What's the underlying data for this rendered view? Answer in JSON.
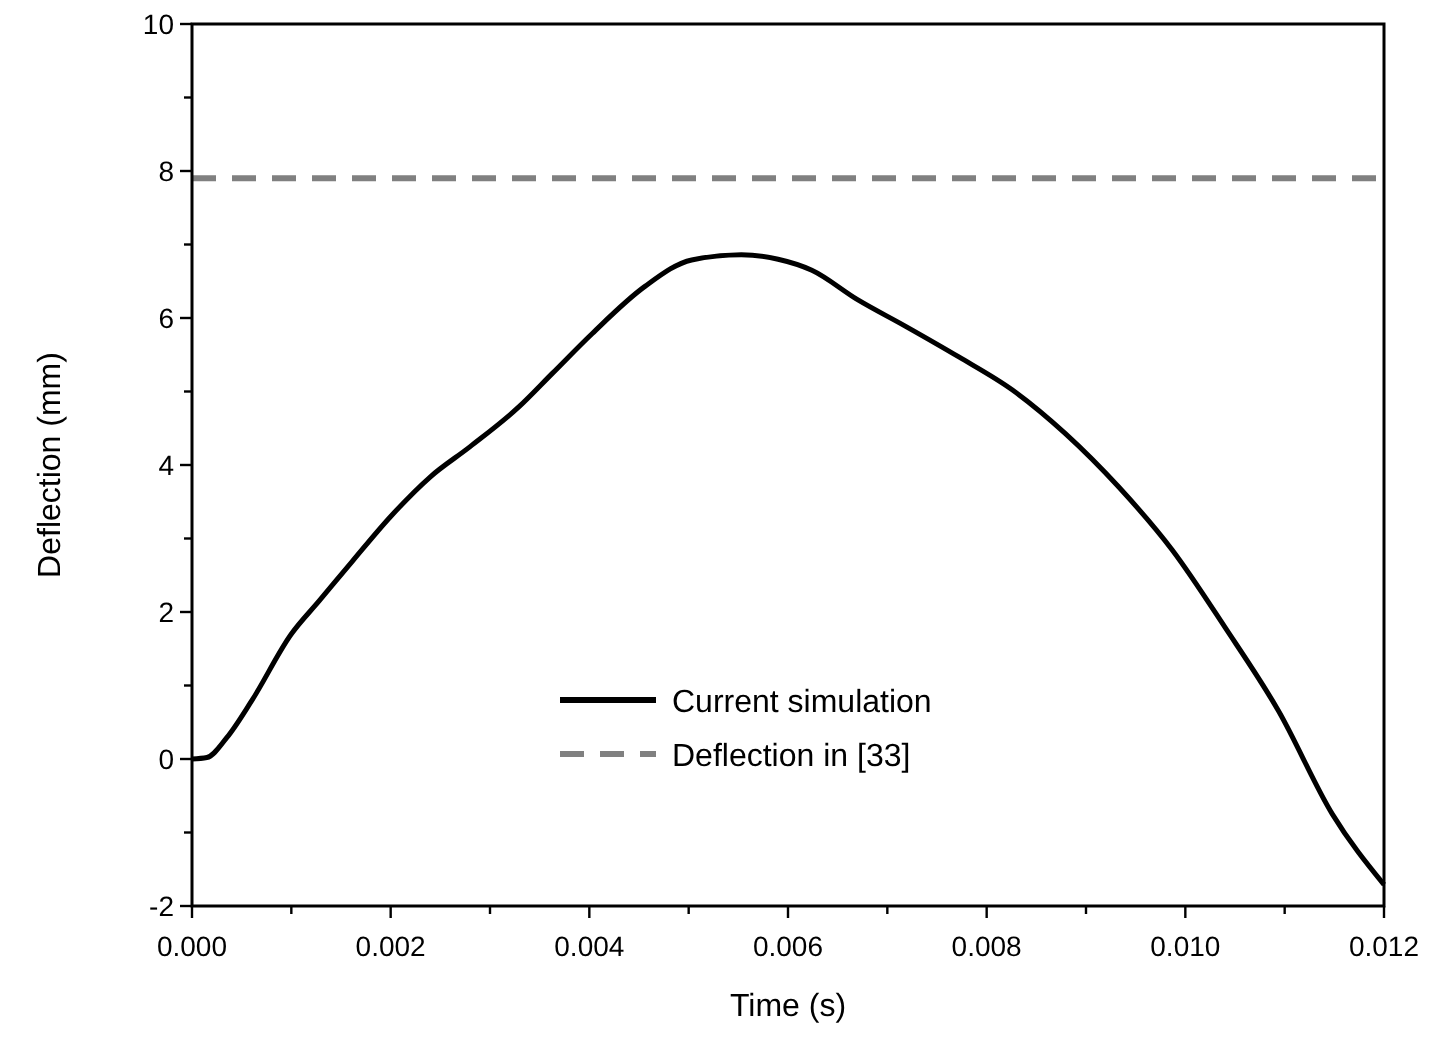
{
  "chart_data": {
    "type": "line",
    "xlabel": "Time (s)",
    "ylabel": "Deflection (mm)",
    "xlim": [
      0,
      0.012
    ],
    "ylim": [
      -2,
      10
    ],
    "xticks": [
      {
        "value": 0,
        "label": "0.000"
      },
      {
        "value": 0.001,
        "label": null
      },
      {
        "value": 0.002,
        "label": "0.002"
      },
      {
        "value": 0.003,
        "label": null
      },
      {
        "value": 0.004,
        "label": "0.004"
      },
      {
        "value": 0.005,
        "label": null
      },
      {
        "value": 0.006,
        "label": "0.006"
      },
      {
        "value": 0.007,
        "label": null
      },
      {
        "value": 0.008,
        "label": "0.008"
      },
      {
        "value": 0.009,
        "label": null
      },
      {
        "value": 0.01,
        "label": "0.010"
      },
      {
        "value": 0.011,
        "label": null
      },
      {
        "value": 0.012,
        "label": "0.012"
      }
    ],
    "yticks": [
      -2,
      {
        "value": -1,
        "label": null
      },
      0,
      {
        "value": 1,
        "label": null
      },
      2,
      {
        "value": 3,
        "label": null
      },
      4,
      {
        "value": 5,
        "label": null
      },
      6,
      {
        "value": 7,
        "label": null
      },
      8,
      {
        "value": 9,
        "label": null
      },
      10
    ],
    "grid": false,
    "legend": "bottom",
    "marker": "none",
    "series": [
      {
        "name": "Current simulation",
        "color": "#000000",
        "line_style": "solid",
        "x": [
          0,
          0.00015,
          0.00035,
          0.0006,
          0.001,
          0.00128,
          0.00162,
          0.002,
          0.0024,
          0.0028,
          0.00329,
          0.00363,
          0.00403,
          0.00456,
          0.00503,
          0.00553,
          0.0059,
          0.00624,
          0.0067,
          0.00718,
          0.00772,
          0.00826,
          0.00879,
          0.00933,
          0.00987,
          0.0104,
          0.01094,
          0.01148,
          0.012
        ],
        "values": [
          0,
          0.02,
          0.29,
          0.79,
          1.7,
          2.15,
          2.7,
          3.3,
          3.84,
          4.25,
          4.79,
          5.25,
          5.79,
          6.43,
          6.79,
          6.86,
          6.8,
          6.65,
          6.25,
          5.89,
          5.47,
          5.02,
          4.43,
          3.7,
          2.84,
          1.79,
          0.65,
          -0.75,
          -1.71
        ]
      },
      {
        "name": "Deflection in [33]",
        "color": "#808080",
        "line_style": "dashed",
        "x": [
          0,
          0.012
        ],
        "values": [
          7.9,
          7.9
        ]
      }
    ]
  }
}
